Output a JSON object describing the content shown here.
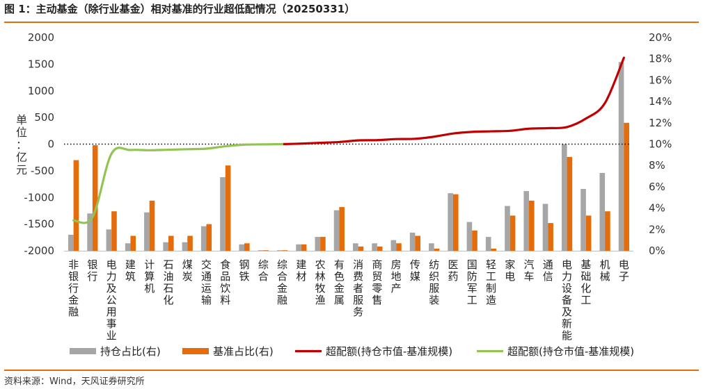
{
  "figure": {
    "title": "图 1：主动基金（除行业基金）相对基准的行业超低配情况（20250331）",
    "source": "资料来源：Wind，天风证券研究所"
  },
  "chart_data": {
    "type": "bar",
    "categories": [
      "非银行金融",
      "银行",
      "电力及公用事业",
      "建筑",
      "计算机",
      "石油石化",
      "煤炭",
      "交通运输",
      "食品饮料",
      "钢铁",
      "综合",
      "综合金融",
      "建材",
      "农林牧渔",
      "有色金属",
      "消费者服务",
      "商贸零售",
      "房地产",
      "传媒",
      "纺织服装",
      "医药",
      "国防军工",
      "轻工制造",
      "家电",
      "汽车",
      "通信",
      "电力设备及新能源",
      "基础化工",
      "机械",
      "电子"
    ],
    "ylabel": "单位：亿元",
    "ylim": [
      -2000,
      2000
    ],
    "yticks": [
      -2000,
      -1500,
      -1000,
      -500,
      0,
      500,
      1000,
      1500,
      2000
    ],
    "y2lim": [
      0,
      20
    ],
    "y2ticks": [
      0,
      2,
      4,
      6,
      8,
      10,
      12,
      14,
      16,
      18,
      20
    ],
    "y2_suffix": "%",
    "reference_line": 0,
    "series": [
      {
        "name": "持仓占比(右)",
        "kind": "bar",
        "axis": "right",
        "color": "#a6a6a6",
        "values": [
          1.5,
          3.5,
          2.0,
          0.7,
          3.6,
          0.8,
          0.8,
          2.3,
          6.9,
          0.6,
          0.05,
          0.05,
          0.6,
          1.3,
          3.8,
          0.7,
          0.7,
          1.0,
          1.7,
          0.7,
          5.4,
          2.7,
          1.3,
          4.2,
          5.6,
          4.4,
          10.0,
          5.8,
          7.3,
          17.7
        ]
      },
      {
        "name": "基准占比(右)",
        "kind": "bar",
        "axis": "right",
        "color": "#e46c0a",
        "values": [
          8.5,
          9.9,
          3.7,
          1.4,
          4.7,
          1.4,
          1.4,
          2.5,
          8.0,
          0.7,
          0.05,
          0.05,
          0.6,
          1.3,
          4.1,
          0.4,
          0.4,
          0.7,
          1.4,
          0.2,
          5.3,
          1.9,
          0.2,
          3.3,
          4.7,
          2.6,
          8.8,
          3.3,
          3.7,
          12.0
        ]
      },
      {
        "name": "超配额(持仓市值-基准规模)",
        "kind": "line",
        "axis": "left",
        "color": "#c00000",
        "values": [
          null,
          null,
          null,
          null,
          null,
          null,
          null,
          null,
          null,
          null,
          null,
          0,
          10,
          25,
          40,
          70,
          75,
          95,
          100,
          140,
          200,
          230,
          240,
          250,
          290,
          300,
          320,
          480,
          770,
          1620
        ]
      },
      {
        "name": "超配额(持仓市值-基准规模)",
        "kind": "line",
        "axis": "left",
        "color": "#92c353",
        "values": [
          -1430,
          -1370,
          -180,
          -110,
          -115,
          -105,
          -95,
          -85,
          -40,
          -10,
          -5,
          0,
          null,
          null,
          null,
          null,
          null,
          null,
          null,
          null,
          null,
          null,
          null,
          null,
          null,
          null,
          null,
          null,
          null,
          null
        ]
      }
    ],
    "legend_position": "bottom",
    "grid": false
  }
}
